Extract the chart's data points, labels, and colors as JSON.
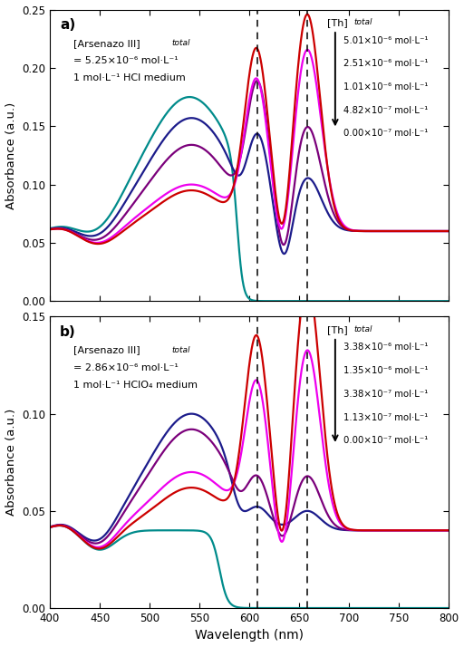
{
  "panel_a": {
    "label": "a)",
    "annot1": "[Arsenazo III]",
    "annot1_sub": "total",
    "annot1_val": " = 5.25×10⁻⁶ mol·L⁻¹",
    "annot2": "1 mol·L⁻¹ HCl medium",
    "legend_title": "[Th]",
    "legend_title_sub": "total",
    "legend_entries": [
      "5.01×10⁻⁶ mol·L⁻¹",
      "2.51×10⁻⁶ mol·L⁻¹",
      "1.01×10⁻⁶ mol·L⁻¹",
      "4.82×10⁻⁷ mol·L⁻¹",
      "0.00×10⁻⁷ mol·L⁻¹"
    ],
    "colors": [
      "#008B8B",
      "#1C1C8B",
      "#7B007B",
      "#EE00EE",
      "#CC0000"
    ],
    "ylim": [
      0.0,
      0.25
    ],
    "yticks": [
      0.0,
      0.05,
      0.1,
      0.15,
      0.2,
      0.25
    ],
    "dashed_lines": [
      608,
      658
    ]
  },
  "panel_b": {
    "label": "b)",
    "annot1": "[Arsenazo III]",
    "annot1_sub": "total",
    "annot1_val": " = 2.86×10⁻⁶ mol·L⁻¹",
    "annot2": "1 mol·L⁻¹ HClO₄ medium",
    "legend_title": "[Th]",
    "legend_title_sub": "total",
    "legend_entries": [
      "3.38×10⁻⁶ mol·L⁻¹",
      "1.35×10⁻⁶ mol·L⁻¹",
      "3.38×10⁻⁷ mol·L⁻¹",
      "1.13×10⁻⁷ mol·L⁻¹",
      "0.00×10⁻⁷ mol·L⁻¹"
    ],
    "colors": [
      "#008B8B",
      "#1C1C8B",
      "#7B007B",
      "#EE00EE",
      "#CC0000"
    ],
    "ylim": [
      0.0,
      0.15
    ],
    "yticks": [
      0.0,
      0.05,
      0.1,
      0.15
    ],
    "dashed_lines": [
      608,
      658
    ]
  },
  "xlabel": "Wavelength (nm)",
  "ylabel": "Absorbance (a.u.)",
  "xlim": [
    400,
    800
  ],
  "xticks": [
    400,
    450,
    500,
    550,
    600,
    650,
    700,
    750,
    800
  ]
}
